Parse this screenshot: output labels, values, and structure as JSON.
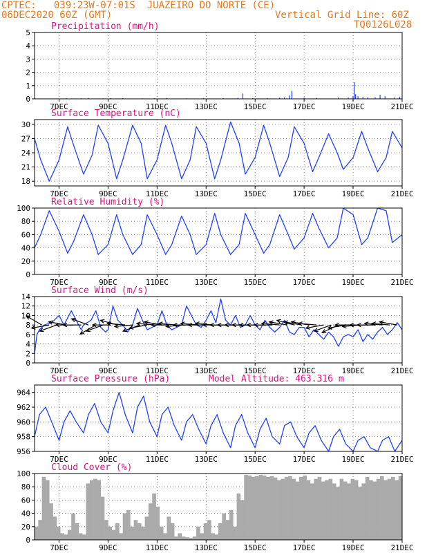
{
  "header": {
    "line1": "CPTEC:   039:23W-07:01S  JUAZEIRO DO NORTE (CE)",
    "line2_left": "06DEC2020 60Z (GMT)",
    "line2_right": "Vertical Grid Line: 60Z",
    "code": "TQ0126L028"
  },
  "colors": {
    "header": "#e8781c",
    "title": "#e0107e",
    "series": "#1f3fff",
    "cloud": "#aaaaaa",
    "wind": "#000000"
  },
  "chart_data": [
    {
      "type": "bar",
      "title": "Precipitation (mm/h)",
      "ylim": [
        0,
        5
      ],
      "yticks": [
        0,
        1,
        2,
        3,
        4,
        5
      ],
      "xticks": [
        "7DEC",
        "9DEC",
        "11DEC",
        "13DEC",
        "15DEC",
        "17DEC",
        "19DEC",
        "21DEC"
      ],
      "x": [
        7.3,
        7.9,
        8.2,
        8.8,
        9.1,
        9.6,
        10.4,
        10.9,
        11.4,
        12.2,
        12.9,
        13.7,
        14.3,
        14.5,
        14.9,
        15.5,
        16.0,
        16.2,
        16.4,
        16.5,
        17.0,
        17.5,
        18.4,
        18.8,
        19.0,
        19.05,
        19.1,
        19.2,
        19.4,
        19.6,
        19.9,
        20.1,
        20.3,
        20.7,
        20.9
      ],
      "values": [
        0.05,
        0.04,
        0.06,
        0.04,
        0.05,
        0.05,
        0.04,
        0.05,
        0.06,
        0.04,
        0.05,
        0.05,
        0.08,
        0.4,
        0.05,
        0.06,
        0.08,
        0.1,
        0.25,
        0.6,
        0.08,
        0.08,
        0.1,
        0.1,
        0.2,
        1.25,
        0.35,
        0.2,
        0.15,
        0.12,
        0.12,
        0.3,
        0.2,
        0.1,
        0.15
      ]
    },
    {
      "type": "line",
      "title": "Surface Temperature (nC)",
      "ylim": [
        17,
        31
      ],
      "yticks": [
        18,
        21,
        24,
        27,
        30
      ],
      "xticks": [
        "7DEC",
        "9DEC",
        "11DEC",
        "13DEC",
        "15DEC",
        "17DEC",
        "19DEC",
        "21DEC"
      ],
      "x": [
        6.0,
        6.25,
        6.6,
        7.0,
        7.35,
        7.6,
        8.0,
        8.35,
        8.6,
        9.0,
        9.35,
        9.6,
        10.0,
        10.35,
        10.6,
        11.0,
        11.35,
        11.6,
        12.0,
        12.35,
        12.6,
        13.0,
        13.35,
        13.6,
        14.0,
        14.35,
        14.6,
        15.0,
        15.35,
        15.6,
        16.0,
        16.35,
        16.6,
        17.0,
        17.35,
        17.6,
        18.0,
        18.35,
        18.6,
        19.0,
        19.35,
        19.6,
        20.0,
        20.35,
        20.6,
        21.0
      ],
      "values": [
        27.0,
        22.5,
        18.0,
        22.5,
        29.5,
        25.5,
        19.5,
        23.5,
        29.8,
        26.0,
        18.5,
        22.5,
        29.8,
        26.0,
        18.5,
        22.5,
        29.8,
        26.0,
        18.5,
        22.5,
        29.5,
        26.0,
        18.5,
        22.5,
        30.5,
        26.0,
        19.5,
        23.0,
        29.8,
        26.0,
        19.0,
        23.0,
        29.5,
        26.0,
        20.0,
        23.0,
        28.0,
        24.0,
        20.5,
        23.0,
        28.5,
        25.0,
        20.0,
        23.0,
        28.5,
        25.0
      ]
    },
    {
      "type": "line",
      "title": "Relative Humidity (%)",
      "ylim": [
        0,
        100
      ],
      "yticks": [
        0,
        20,
        40,
        60,
        80,
        100
      ],
      "xticks": [
        "7DEC",
        "9DEC",
        "11DEC",
        "13DEC",
        "15DEC",
        "17DEC",
        "19DEC",
        "21DEC"
      ],
      "x": [
        6.0,
        6.25,
        6.6,
        7.0,
        7.35,
        7.6,
        8.0,
        8.35,
        8.6,
        9.0,
        9.35,
        9.6,
        10.0,
        10.35,
        10.6,
        11.0,
        11.35,
        11.6,
        12.0,
        12.35,
        12.6,
        13.0,
        13.35,
        13.6,
        14.0,
        14.35,
        14.6,
        15.0,
        15.35,
        15.6,
        16.0,
        16.35,
        16.6,
        17.0,
        17.35,
        17.6,
        18.0,
        18.35,
        18.6,
        19.0,
        19.35,
        19.6,
        20.0,
        20.35,
        20.6,
        21.0
      ],
      "values": [
        40,
        60,
        96,
        65,
        32,
        50,
        90,
        60,
        30,
        45,
        90,
        60,
        30,
        45,
        90,
        60,
        30,
        45,
        88,
        60,
        30,
        45,
        92,
        60,
        30,
        45,
        92,
        60,
        32,
        45,
        90,
        60,
        38,
        55,
        92,
        70,
        40,
        55,
        100,
        90,
        45,
        55,
        100,
        96,
        48,
        60
      ]
    },
    {
      "type": "line",
      "title": "Surface Wind (m/s)",
      "ylim": [
        0,
        14
      ],
      "yticks": [
        0,
        2,
        4,
        6,
        8,
        10,
        12,
        14
      ],
      "xticks": [
        "7DEC",
        "9DEC",
        "11DEC",
        "13DEC",
        "15DEC",
        "17DEC",
        "19DEC",
        "21DEC"
      ],
      "x": [
        6.0,
        6.1,
        6.2,
        6.4,
        6.7,
        7.0,
        7.2,
        7.5,
        7.7,
        7.9,
        8.0,
        8.3,
        8.5,
        8.7,
        8.9,
        9.0,
        9.2,
        9.4,
        9.6,
        9.8,
        10.0,
        10.2,
        10.4,
        10.6,
        10.8,
        11.0,
        11.2,
        11.4,
        11.6,
        11.8,
        12.0,
        12.2,
        12.4,
        12.6,
        12.8,
        13.0,
        13.2,
        13.4,
        13.6,
        13.8,
        14.0,
        14.2,
        14.4,
        14.6,
        14.8,
        15.0,
        15.2,
        15.4,
        15.6,
        15.8,
        16.0,
        16.2,
        16.4,
        16.6,
        16.8,
        17.0,
        17.2,
        17.4,
        17.6,
        17.8,
        18.0,
        18.2,
        18.4,
        18.6,
        18.8,
        19.0,
        19.2,
        19.4,
        19.6,
        19.8,
        20.0,
        20.2,
        20.4,
        20.6,
        20.8,
        21.0
      ],
      "values": [
        2,
        6,
        7,
        8,
        8.5,
        10,
        8,
        11,
        9,
        7,
        8,
        9,
        11,
        7.5,
        6.5,
        7,
        12,
        9,
        8,
        6.5,
        8,
        11.5,
        9,
        7,
        7.5,
        8,
        11,
        8,
        7,
        7.5,
        8,
        12,
        10,
        8,
        7.5,
        9,
        11,
        8.5,
        13.5,
        9,
        8,
        10,
        7.5,
        8,
        10,
        8,
        7,
        9,
        7.5,
        6.5,
        7.5,
        9,
        6.5,
        6,
        7.5,
        7.5,
        5.5,
        7,
        6,
        5,
        6.5,
        5.5,
        3.5,
        5.5,
        6,
        5.5,
        7,
        4.5,
        6,
        5,
        6.5,
        7.5,
        6,
        7,
        8.5,
        7
      ]
    },
    {
      "type": "line",
      "title": "Surface Pressure (hPa)",
      "annotation": "Model Altitude: 463.316 m",
      "ylim": [
        956,
        965
      ],
      "yticks": [
        956,
        958,
        960,
        962,
        964
      ],
      "xticks": [
        "7DEC",
        "9DEC",
        "11DEC",
        "13DEC",
        "15DEC",
        "17DEC",
        "19DEC",
        "21DEC"
      ],
      "x": [
        6.0,
        6.2,
        6.45,
        6.7,
        7.0,
        7.2,
        7.45,
        7.7,
        8.0,
        8.2,
        8.45,
        8.7,
        9.0,
        9.2,
        9.45,
        9.7,
        10.0,
        10.2,
        10.45,
        10.7,
        11.0,
        11.2,
        11.45,
        11.7,
        12.0,
        12.2,
        12.45,
        12.7,
        13.0,
        13.2,
        13.45,
        13.7,
        14.0,
        14.2,
        14.45,
        14.7,
        15.0,
        15.2,
        15.45,
        15.7,
        16.0,
        16.2,
        16.45,
        16.7,
        17.0,
        17.2,
        17.45,
        17.7,
        18.0,
        18.2,
        18.45,
        18.7,
        19.0,
        19.2,
        19.45,
        19.7,
        20.0,
        20.2,
        20.45,
        20.7,
        21.0
      ],
      "values": [
        958,
        961,
        962,
        960,
        957.5,
        960,
        961.5,
        960,
        958.5,
        961,
        962.5,
        960,
        958.5,
        961.5,
        964,
        961,
        958.5,
        962,
        963.5,
        960,
        958,
        961,
        962,
        959.5,
        957.5,
        960,
        961,
        959,
        957,
        959.5,
        961,
        958.5,
        956.5,
        959.5,
        961,
        958.5,
        956.5,
        959,
        960.5,
        958,
        957,
        959.5,
        960,
        958,
        956.5,
        958.5,
        959.5,
        957.5,
        956,
        958,
        959,
        957,
        956,
        957.5,
        958,
        956.5,
        956,
        957.5,
        958,
        956,
        957.5
      ]
    },
    {
      "type": "bar",
      "title": "Cloud Cover (%)",
      "ylim": [
        0,
        100
      ],
      "yticks": [
        0,
        20,
        40,
        60,
        80,
        100
      ],
      "xticks": [
        "7DEC",
        "9DEC",
        "11DEC",
        "13DEC",
        "15DEC",
        "17DEC",
        "19DEC",
        "21DEC"
      ],
      "x": [
        6.0,
        6.15,
        6.3,
        6.45,
        6.6,
        6.75,
        6.9,
        7.05,
        7.2,
        7.35,
        7.5,
        7.65,
        7.8,
        7.95,
        8.1,
        8.25,
        8.4,
        8.55,
        8.7,
        8.85,
        9.0,
        9.15,
        9.3,
        9.45,
        9.6,
        9.75,
        9.9,
        10.05,
        10.2,
        10.35,
        10.5,
        10.65,
        10.8,
        10.95,
        11.1,
        11.25,
        11.4,
        11.55,
        11.7,
        11.85,
        12.0,
        12.15,
        12.3,
        12.45,
        12.6,
        12.75,
        12.9,
        13.05,
        13.2,
        13.35,
        13.5,
        13.65,
        13.8,
        13.95,
        14.1,
        14.25,
        14.4,
        14.55,
        14.7,
        14.85,
        15.0,
        15.15,
        15.3,
        15.45,
        15.6,
        15.75,
        15.9,
        16.05,
        16.2,
        16.35,
        16.5,
        16.65,
        16.8,
        16.95,
        17.1,
        17.25,
        17.4,
        17.55,
        17.7,
        17.85,
        18.0,
        18.15,
        18.3,
        18.45,
        18.6,
        18.75,
        18.9,
        19.05,
        19.2,
        19.35,
        19.5,
        19.65,
        19.8,
        19.95,
        20.1,
        20.25,
        20.4,
        20.55,
        20.7,
        20.85
      ],
      "values": [
        20,
        30,
        95,
        90,
        55,
        35,
        20,
        10,
        8,
        15,
        40,
        25,
        10,
        8,
        85,
        90,
        92,
        90,
        65,
        30,
        20,
        15,
        25,
        10,
        40,
        45,
        20,
        30,
        25,
        20,
        35,
        55,
        70,
        50,
        20,
        10,
        35,
        25,
        5,
        10,
        5,
        4,
        3,
        5,
        20,
        10,
        25,
        30,
        10,
        8,
        25,
        40,
        30,
        45,
        20,
        70,
        60,
        98,
        97,
        95,
        96,
        98,
        97,
        95,
        96,
        94,
        90,
        92,
        95,
        96,
        92,
        88,
        95,
        97,
        90,
        85,
        92,
        95,
        88,
        90,
        92,
        85,
        80,
        92,
        88,
        85,
        92,
        90,
        80,
        85,
        95,
        90,
        88,
        92,
        96,
        90,
        92,
        95,
        90,
        96
      ]
    }
  ],
  "wind_arrows": {
    "x": [
      6.3,
      6.6,
      6.9,
      7.3,
      7.6,
      7.9,
      8.2,
      8.5,
      8.8,
      9.1,
      9.4,
      9.7,
      10.0,
      10.3,
      10.6,
      10.9,
      11.2,
      11.5,
      11.8,
      12.1,
      12.4,
      12.7,
      13.0,
      13.3,
      13.6,
      13.9,
      14.2,
      14.5,
      14.8,
      15.1,
      15.4,
      15.7,
      16.0,
      16.3,
      16.6,
      16.9,
      17.2,
      17.5,
      17.8,
      18.1,
      18.4,
      18.7,
      19.0,
      19.3,
      19.6,
      19.9,
      20.2,
      20.5,
      20.8
    ],
    "dir_deg": [
      150,
      190,
      200,
      170,
      180,
      180,
      160,
      210,
      200,
      180,
      165,
      175,
      185,
      200,
      190,
      175,
      170,
      180,
      175,
      185,
      180,
      175,
      180,
      175,
      180,
      180,
      180,
      180,
      180,
      180,
      180,
      180,
      175,
      170,
      165,
      170,
      170,
      175,
      190,
      200,
      205,
      190,
      180,
      185,
      180,
      180,
      175,
      175,
      170
    ]
  }
}
